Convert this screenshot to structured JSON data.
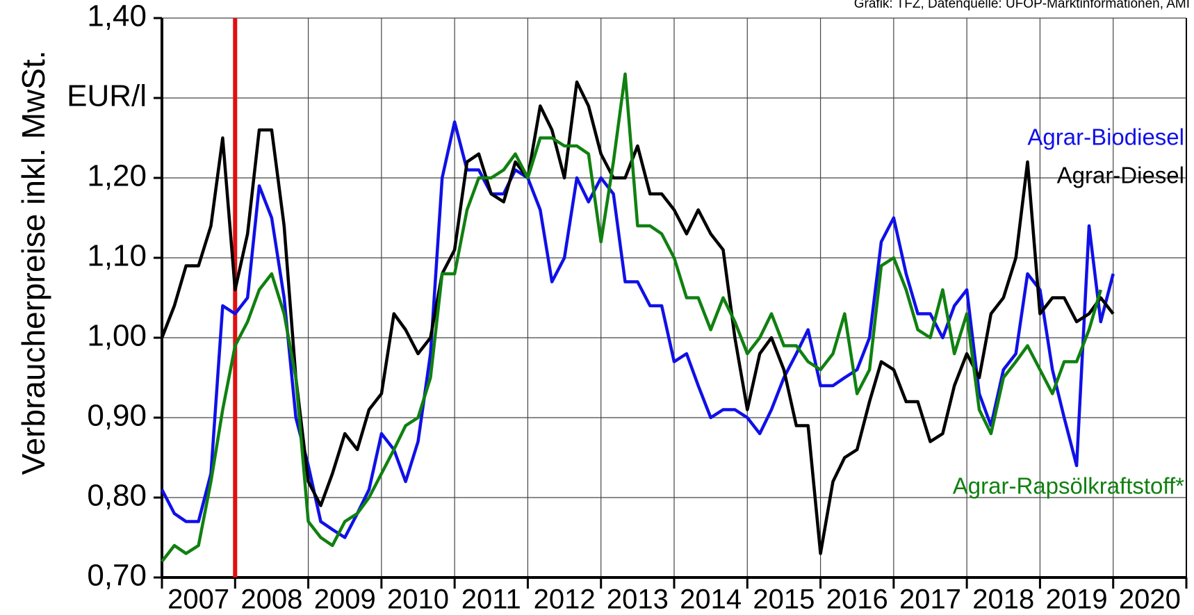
{
  "chart_data": {
    "type": "line",
    "source": "Grafik: TFZ,  Datenquelle: UFOP-Marktinformationen, AMI",
    "y_label": "Verbraucherpreise inkl. MwSt.",
    "xlim": [
      2007,
      2021
    ],
    "xticks": [
      2007,
      2008,
      2009,
      2010,
      2011,
      2012,
      2013,
      2014,
      2015,
      2016,
      2017,
      2018,
      2019,
      2020,
      2021
    ],
    "categories": [
      "2007",
      "2008",
      "2009",
      "2010",
      "2011",
      "2012",
      "2013",
      "2014",
      "2015",
      "2016",
      "2017",
      "2018",
      "2019",
      "2020"
    ],
    "ylim": [
      0.7,
      1.4
    ],
    "yticks": [
      {
        "value": 0.7,
        "label": "0,70"
      },
      {
        "value": 0.8,
        "label": "0,80"
      },
      {
        "value": 0.9,
        "label": "0,90"
      },
      {
        "value": 1.0,
        "label": "1,00"
      },
      {
        "value": 1.1,
        "label": "1,10"
      },
      {
        "value": 1.2,
        "label": "1,20"
      },
      {
        "value": 1.3,
        "label": "EUR/l"
      },
      {
        "value": 1.4,
        "label": "1,40"
      }
    ],
    "grid": true,
    "vline": {
      "value": 2008,
      "color": "#e01010"
    },
    "x": [
      2007.0,
      2007.17,
      2007.33,
      2007.5,
      2007.67,
      2007.83,
      2008.0,
      2008.17,
      2008.33,
      2008.5,
      2008.67,
      2008.83,
      2009.0,
      2009.17,
      2009.33,
      2009.5,
      2009.67,
      2009.83,
      2010.0,
      2010.17,
      2010.33,
      2010.5,
      2010.67,
      2010.83,
      2011.0,
      2011.17,
      2011.33,
      2011.5,
      2011.67,
      2011.83,
      2012.0,
      2012.17,
      2012.33,
      2012.5,
      2012.67,
      2012.83,
      2013.0,
      2013.17,
      2013.33,
      2013.5,
      2013.67,
      2013.83,
      2014.0,
      2014.17,
      2014.33,
      2014.5,
      2014.67,
      2014.83,
      2015.0,
      2015.17,
      2015.33,
      2015.5,
      2015.67,
      2015.83,
      2016.0,
      2016.17,
      2016.33,
      2016.5,
      2016.67,
      2016.83,
      2017.0,
      2017.17,
      2017.33,
      2017.5,
      2017.67,
      2017.83,
      2018.0,
      2018.17,
      2018.33,
      2018.5,
      2018.67,
      2018.83,
      2019.0,
      2019.17,
      2019.33,
      2019.5,
      2019.67,
      2019.83,
      2020.0
    ],
    "series": [
      {
        "name": "Agrar-Biodiesel",
        "color": "#1010e8",
        "values": [
          0.81,
          0.78,
          0.77,
          0.77,
          0.83,
          1.04,
          1.03,
          1.05,
          1.19,
          1.15,
          1.05,
          0.9,
          0.84,
          0.77,
          0.76,
          0.75,
          0.78,
          0.81,
          0.88,
          0.86,
          0.82,
          0.87,
          0.98,
          1.2,
          1.27,
          1.21,
          1.21,
          1.18,
          1.18,
          1.21,
          1.2,
          1.16,
          1.07,
          1.1,
          1.2,
          1.17,
          1.2,
          1.18,
          1.07,
          1.07,
          1.04,
          1.04,
          0.97,
          0.98,
          0.94,
          0.9,
          0.91,
          0.91,
          0.9,
          0.88,
          0.91,
          0.95,
          0.98,
          1.01,
          0.94,
          0.94,
          0.95,
          0.96,
          1.0,
          1.12,
          1.15,
          1.08,
          1.03,
          1.03,
          1.0,
          1.04,
          1.06,
          0.93,
          0.89,
          0.96,
          0.98,
          1.08,
          1.06,
          0.96,
          0.9,
          0.84,
          1.14,
          1.02,
          1.08
        ]
      },
      {
        "name": "Agrar-Diesel",
        "color": "#000000",
        "values": [
          1.0,
          1.04,
          1.09,
          1.09,
          1.14,
          1.25,
          1.06,
          1.13,
          1.26,
          1.26,
          1.14,
          0.95,
          0.82,
          0.79,
          0.83,
          0.88,
          0.86,
          0.91,
          0.93,
          1.03,
          1.01,
          0.98,
          1.0,
          1.08,
          1.11,
          1.22,
          1.23,
          1.18,
          1.17,
          1.22,
          1.2,
          1.29,
          1.26,
          1.2,
          1.32,
          1.29,
          1.23,
          1.2,
          1.2,
          1.24,
          1.18,
          1.18,
          1.16,
          1.13,
          1.16,
          1.13,
          1.11,
          1.0,
          0.91,
          0.98,
          1.0,
          0.96,
          0.89,
          0.89,
          0.73,
          0.82,
          0.85,
          0.86,
          0.92,
          0.97,
          0.96,
          0.92,
          0.92,
          0.87,
          0.88,
          0.94,
          0.98,
          0.95,
          1.03,
          1.05,
          1.1,
          1.22,
          1.03,
          1.05,
          1.05,
          1.02,
          1.03,
          1.05,
          1.03
        ]
      },
      {
        "name": "Agrar-Rapsölkraftstoff*",
        "color": "#108010",
        "values": [
          0.72,
          0.74,
          0.73,
          0.74,
          0.82,
          0.91,
          0.99,
          1.02,
          1.06,
          1.08,
          1.03,
          0.95,
          0.77,
          0.75,
          0.74,
          0.77,
          0.78,
          0.8,
          0.83,
          0.86,
          0.89,
          0.9,
          0.95,
          1.08,
          1.08,
          1.16,
          1.2,
          1.2,
          1.21,
          1.23,
          1.2,
          1.25,
          1.25,
          1.24,
          1.24,
          1.23,
          1.12,
          1.22,
          1.33,
          1.14,
          1.14,
          1.13,
          1.1,
          1.05,
          1.05,
          1.01,
          1.05,
          1.02,
          0.98,
          1.0,
          1.03,
          0.99,
          0.99,
          0.97,
          0.96,
          0.98,
          1.03,
          0.93,
          0.96,
          1.09,
          1.1,
          1.06,
          1.01,
          1.0,
          1.06,
          0.98,
          1.03,
          0.91,
          0.88,
          0.95,
          0.97,
          0.99,
          0.96,
          0.93,
          0.97,
          0.97,
          1.01,
          1.06,
          null
        ]
      }
    ]
  }
}
